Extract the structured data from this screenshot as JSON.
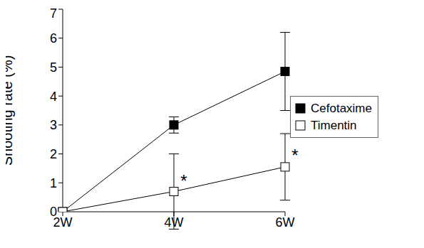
{
  "chart_data": {
    "type": "line",
    "y_label": "Shooting rate (%)",
    "categories": [
      "2W",
      "4W",
      "6W"
    ],
    "series": [
      {
        "name": "Cefotaxime",
        "color": "#000000",
        "marker": "filled_square",
        "values": [
          0,
          3.0,
          4.85
        ],
        "errors": [
          0,
          0.28,
          1.35
        ]
      },
      {
        "name": "Timentin",
        "color": "#000000",
        "marker": "open_square",
        "values": [
          0,
          0.7,
          1.55
        ],
        "errors": [
          0,
          1.3,
          1.15
        ]
      }
    ],
    "ylim": [
      0,
      7
    ],
    "yticks": [
      0,
      1,
      2,
      3,
      4,
      5,
      6,
      7
    ],
    "legend": "right",
    "annotations": [
      {
        "text": "*",
        "x": "4W",
        "y": 1.1
      },
      {
        "text": "*",
        "x": "6W",
        "y": 2.0
      }
    ]
  }
}
